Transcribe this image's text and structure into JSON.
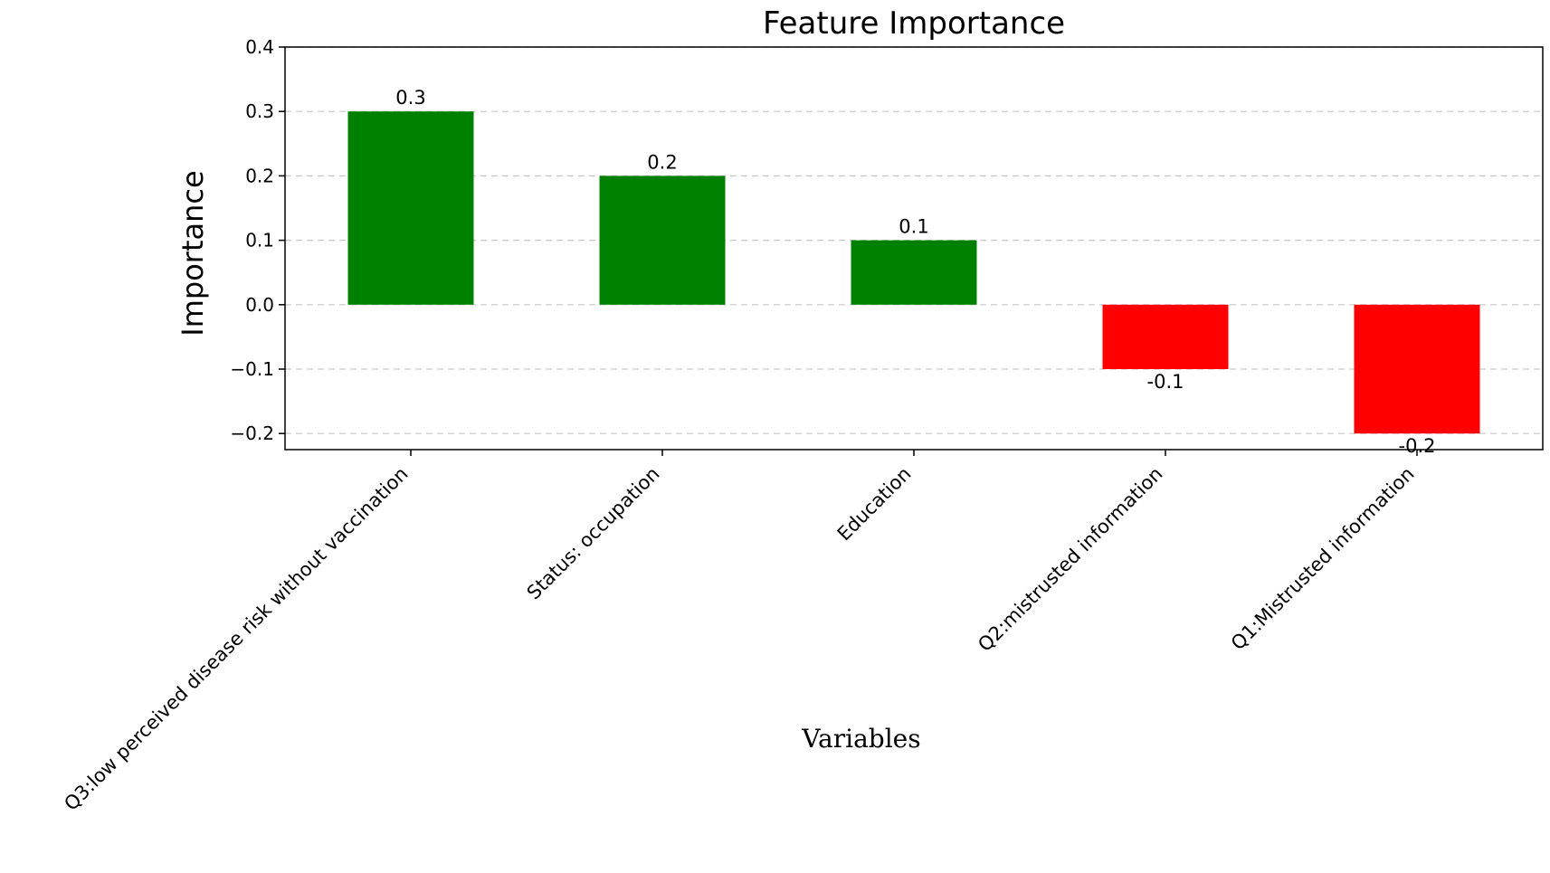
{
  "chart_data": {
    "type": "bar",
    "title": "Feature Importance",
    "xlabel": "Variables",
    "ylabel": "Importance",
    "categories": [
      "Q3:low perceived disease risk without vaccination",
      "Status: occupation",
      "Education",
      "Q2:mistrusted information",
      "Q1:Mistrusted information"
    ],
    "values": [
      0.3,
      0.2,
      0.1,
      -0.1,
      -0.2
    ],
    "value_labels": [
      "0.3",
      "0.2",
      "0.1",
      "-0.1",
      "-0.2"
    ],
    "bar_colors": [
      "#008000",
      "#008000",
      "#008000",
      "#ff0000",
      "#ff0000"
    ],
    "ylim": [
      -0.225,
      0.4
    ],
    "yticks": [
      0.4,
      0.3,
      0.2,
      0.1,
      0.0,
      -0.1,
      -0.2
    ],
    "ytick_labels": [
      "0.4",
      "0.3",
      "0.2",
      "0.1",
      "0.0",
      "−0.1",
      "−0.2"
    ],
    "grid": "horizontal dashed",
    "legend": "none"
  }
}
